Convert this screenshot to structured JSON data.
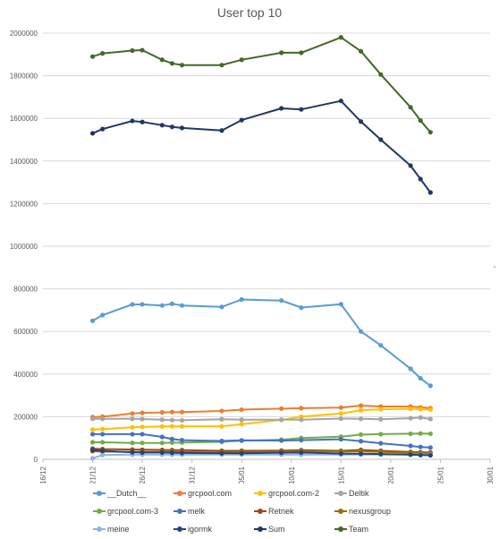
{
  "chart_data": {
    "type": "line",
    "title": "User top 10",
    "xlabel": "",
    "ylabel": "",
    "x_ticks": [
      "16/12",
      "21/12",
      "26/12",
      "31/12",
      "05/01",
      "10/01",
      "15/01",
      "20/01",
      "25/01",
      "30/01"
    ],
    "xlim": [
      "16/12",
      "30/01"
    ],
    "ylim": [
      0,
      2000000
    ],
    "y_ticks": [
      0,
      200000,
      400000,
      600000,
      800000,
      1000000,
      1200000,
      1400000,
      1600000,
      1800000,
      2000000
    ],
    "grid": "horizontal",
    "legend_position": "bottom",
    "x": [
      "21/12",
      "22/12",
      "25/12",
      "26/12",
      "28/12",
      "29/12",
      "30/12",
      "03/01",
      "05/01",
      "09/01",
      "11/01",
      "15/01",
      "17/01",
      "19/01",
      "22/01",
      "23/01",
      "24/01"
    ],
    "series": [
      {
        "name": "__Dutch__",
        "color": "#5b9bd5",
        "values": [
          650000,
          677000,
          727000,
          727000,
          722000,
          730000,
          722000,
          715000,
          750000,
          745000,
          712000,
          728000,
          600000,
          535000,
          425000,
          380000,
          345000
        ]
      },
      {
        "name": "grcpool.com",
        "color": "#ed7d31",
        "values": [
          198000,
          200000,
          215000,
          218000,
          220000,
          222000,
          222000,
          227000,
          233000,
          238000,
          240000,
          243000,
          252000,
          248000,
          248000,
          244000,
          240000
        ]
      },
      {
        "name": "grcpool.com-2",
        "color": "#ffc000",
        "values": [
          140000,
          142000,
          150000,
          152000,
          154000,
          155000,
          155000,
          155000,
          165000,
          185000,
          200000,
          215000,
          230000,
          235000,
          237000,
          235000,
          233000
        ]
      },
      {
        "name": "Deltik",
        "color": "#a5a5a5",
        "values": [
          190000,
          190000,
          190000,
          189000,
          186000,
          184000,
          183000,
          188000,
          186000,
          186000,
          186000,
          191000,
          190000,
          188000,
          193000,
          196000,
          189000
        ]
      },
      {
        "name": "grcpool.com-3",
        "color": "#70ad47",
        "values": [
          80000,
          80000,
          77000,
          77000,
          77000,
          78000,
          79000,
          82000,
          87000,
          92000,
          100000,
          106000,
          116000,
          118000,
          120000,
          121000,
          120000
        ]
      },
      {
        "name": "melk",
        "color": "#4472c4",
        "values": [
          118000,
          118000,
          118000,
          118000,
          105000,
          95000,
          90000,
          86000,
          89000,
          88000,
          90000,
          94000,
          85000,
          75000,
          63000,
          58000,
          55000
        ]
      },
      {
        "name": "Retnek",
        "color": "#9e480e",
        "values": [
          50000,
          48000,
          46000,
          45000,
          44000,
          43000,
          43000,
          40000,
          40000,
          41000,
          43000,
          40000,
          44000,
          40000,
          35000,
          33000,
          32000
        ]
      },
      {
        "name": "nexusgroup",
        "color": "#997300",
        "values": [
          38000,
          36000,
          35000,
          35000,
          35000,
          35000,
          34000,
          32000,
          33000,
          37000,
          38000,
          37000,
          38000,
          35000,
          31000,
          29000,
          27000
        ]
      },
      {
        "name": "meine",
        "color": "#8fb4e3",
        "values": [
          5000,
          20000,
          22000,
          22000,
          22000,
          22000,
          22000,
          22000,
          22000,
          22000,
          22000,
          22000,
          22000,
          22000,
          22000,
          22000,
          22000
        ]
      },
      {
        "name": "igormk",
        "color": "#264478",
        "values": [
          43000,
          40000,
          33000,
          32000,
          32000,
          31000,
          30000,
          28000,
          28000,
          31000,
          32000,
          27000,
          26000,
          25000,
          22000,
          20000,
          19000
        ]
      },
      {
        "name": "Sum",
        "color": "#203864",
        "values": [
          1530000,
          1550000,
          1588000,
          1583000,
          1568000,
          1560000,
          1555000,
          1543000,
          1592000,
          1647000,
          1642000,
          1682000,
          1585000,
          1500000,
          1378000,
          1315000,
          1252000
        ]
      },
      {
        "name": "Team",
        "color": "#43682b",
        "values": [
          1890000,
          1905000,
          1918000,
          1920000,
          1875000,
          1858000,
          1850000,
          1850000,
          1875000,
          1908000,
          1908000,
          1980000,
          1915000,
          1806000,
          1652000,
          1590000,
          1535000
        ]
      }
    ],
    "legend_rows": [
      [
        "__Dutch__",
        "grcpool.com",
        "grcpool.com-2",
        "Deltik"
      ],
      [
        "grcpool.com-3",
        "melk",
        "Retnek",
        "nexusgroup"
      ],
      [
        "meine",
        "igormk",
        "Sum",
        "Team"
      ]
    ]
  }
}
